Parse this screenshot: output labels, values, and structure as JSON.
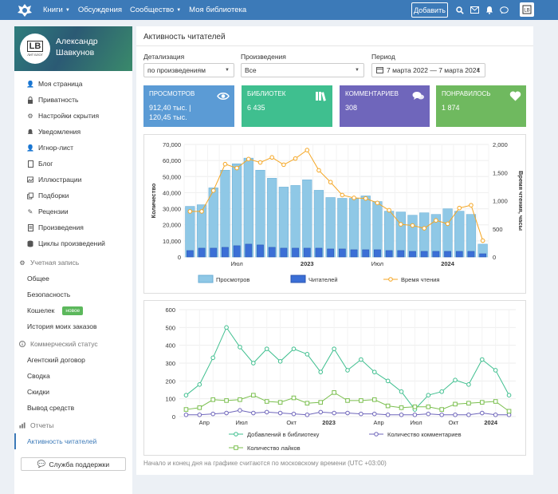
{
  "nav": {
    "items": [
      "Книги",
      "Обсуждения",
      "Сообщество",
      "Моя библиотека"
    ],
    "add_button": "Добавить"
  },
  "profile": {
    "logo_text": "LB",
    "logo_sub": "ЛИТ БЛОГ",
    "name_first": "Александр",
    "name_last": "Шавкунов"
  },
  "sidebar": {
    "items": [
      "Моя страница",
      "Приватность",
      "Настройки скрытия",
      "Уведомления",
      "Игнор-лист",
      "Блог",
      "Иллюстрации",
      "Подборки",
      "Рецензии",
      "Произведения",
      "Циклы произведений"
    ],
    "section_account": "Учетная запись",
    "account_items": [
      "Общее",
      "Безопасность",
      "Кошелек",
      "История моих заказов"
    ],
    "badge_new": "новое",
    "section_commercial": "Коммерческий статус",
    "commercial_items": [
      "Агентский договор",
      "Сводка",
      "Скидки",
      "Вывод средств"
    ],
    "section_reports": "Отчеты",
    "reports_items": [
      "Активность читателей"
    ],
    "support_button": "Служба поддержки"
  },
  "main": {
    "title": "Активность читателей",
    "detail_label": "Детализация",
    "detail_value": "по произведениям",
    "works_label": "Произведения",
    "works_value": "Все",
    "period_label": "Период",
    "period_value": "7 марта 2022 — 7 марта 2024",
    "note": "Начало и конец дня на графике считаются по московскому времени (UTC +03:00)"
  },
  "stats": [
    {
      "title": "ПРОСМОТРОВ",
      "value1": "912,40 тыс. |",
      "value2": "120,45 тыс.",
      "color": "#5b9bd5",
      "icon": "eye-icon"
    },
    {
      "title": "БИБЛИОТЕК",
      "value1": "6 435",
      "value2": "",
      "color": "#3fbf8f",
      "icon": "books-icon"
    },
    {
      "title": "КОММЕНТАРИЕВ",
      "value1": "308",
      "value2": "",
      "color": "#6f66bb",
      "icon": "comments-icon"
    },
    {
      "title": "ПОНРАВИЛОСЬ",
      "value1": "1 874",
      "value2": "",
      "color": "#6fb95f",
      "icon": "heart-icon"
    }
  ],
  "chart_data": [
    {
      "type": "bar",
      "ylabel": "Количество",
      "y2label": "Время чтения, часы",
      "ylim": [
        0,
        70000
      ],
      "y2lim": [
        0,
        2000
      ],
      "yticks": [
        "0",
        "10,000",
        "20,000",
        "30,000",
        "40,000",
        "50,000",
        "60,000",
        "70,000"
      ],
      "y2ticks": [
        "0",
        "500",
        "1,000",
        "1,500",
        "2,000"
      ],
      "xticks": [
        {
          "label": "Июл",
          "at": 4
        },
        {
          "label": "2023",
          "at": 10,
          "bold": true
        },
        {
          "label": "Июл",
          "at": 16
        },
        {
          "label": "2024",
          "at": 22,
          "bold": true
        }
      ],
      "legend": [
        "Просмотров",
        "Читателей",
        "Время чтения"
      ],
      "series": [
        {
          "name": "Просмотров",
          "values": [
            31500,
            32500,
            43000,
            54000,
            58000,
            61500,
            54000,
            49000,
            43500,
            44500,
            48000,
            41500,
            37000,
            36500,
            36500,
            38000,
            34500,
            28500,
            28000,
            26000,
            27500,
            26500,
            30000,
            28500,
            26500,
            8000
          ]
        },
        {
          "name": "Читателей",
          "values": [
            4000,
            5500,
            5500,
            6000,
            7000,
            8000,
            7500,
            6000,
            5500,
            5500,
            5500,
            5500,
            5000,
            5000,
            4500,
            4500,
            4500,
            4000,
            4000,
            3500,
            3500,
            3500,
            3500,
            3500,
            3500,
            2000
          ]
        },
        {
          "name": "Время чтения",
          "values": [
            810,
            810,
            1180,
            1650,
            1580,
            1740,
            1680,
            1770,
            1640,
            1750,
            1900,
            1540,
            1330,
            1100,
            1050,
            1040,
            960,
            830,
            580,
            560,
            510,
            650,
            590,
            870,
            920,
            290
          ]
        }
      ]
    },
    {
      "type": "line",
      "ylim": [
        0,
        600
      ],
      "yticks": [
        "0",
        "100",
        "200",
        "300",
        "400",
        "500",
        "600"
      ],
      "xticks": [
        {
          "label": "Апр",
          "at": 2
        },
        {
          "label": "Июл",
          "at": 5
        },
        {
          "label": "Окт",
          "at": 9
        },
        {
          "label": "2023",
          "at": 12,
          "bold": true
        },
        {
          "label": "Апр",
          "at": 16
        },
        {
          "label": "Июл",
          "at": 19
        },
        {
          "label": "Окт",
          "at": 22
        },
        {
          "label": "2024",
          "at": 25,
          "bold": true
        }
      ],
      "legend": [
        "Добавлений в библиотеку",
        "Количество комментариев",
        "Количество лайков"
      ],
      "series": [
        {
          "name": "Добавлений в библиотеку",
          "color": "#3fbf8f",
          "values": [
            120,
            180,
            330,
            500,
            390,
            300,
            380,
            310,
            380,
            350,
            250,
            380,
            260,
            320,
            250,
            200,
            140,
            40,
            120,
            140,
            205,
            180,
            320,
            260,
            120
          ]
        },
        {
          "name": "Количество комментариев",
          "color": "#6f66bb",
          "values": [
            10,
            10,
            15,
            20,
            35,
            20,
            25,
            20,
            15,
            10,
            25,
            20,
            20,
            15,
            15,
            10,
            10,
            10,
            15,
            10,
            10,
            10,
            20,
            10,
            10
          ]
        },
        {
          "name": "Количество лайков",
          "color": "#7bbf4f",
          "values": [
            40,
            50,
            95,
            90,
            95,
            120,
            85,
            80,
            105,
            75,
            80,
            135,
            90,
            90,
            95,
            60,
            50,
            55,
            55,
            40,
            70,
            75,
            80,
            85,
            30
          ]
        }
      ]
    }
  ]
}
